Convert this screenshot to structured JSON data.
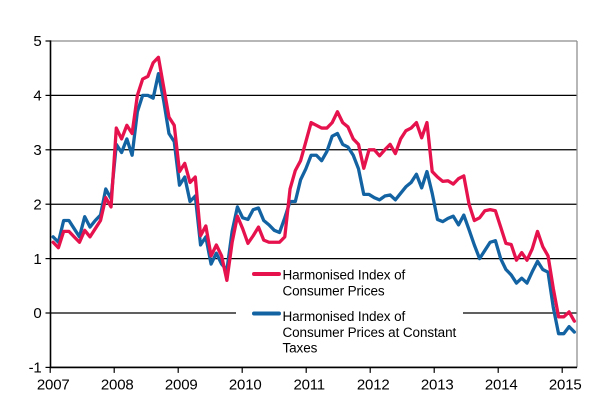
{
  "chart_data": {
    "type": "line",
    "x_tick_labels": [
      "2007",
      "2008",
      "2009",
      "2010",
      "2011",
      "2012",
      "2013",
      "2014",
      "2015"
    ],
    "y_tick_labels": [
      "5",
      "4",
      "3",
      "2",
      "1",
      "0",
      "-1"
    ],
    "y_ticks": [
      5,
      4,
      3,
      2,
      1,
      0,
      -1
    ],
    "ylim": [
      -1,
      5
    ],
    "x_range": [
      "2007M01",
      "2015M04"
    ],
    "points_per_year": 12,
    "grid": "horizontal",
    "legend_position": "inside-bottom",
    "series": [
      {
        "name": "Harmonised Index of Consumer Prices",
        "color": "#e6124d",
        "values": [
          1.3,
          1.2,
          1.5,
          1.5,
          1.4,
          1.3,
          1.52,
          1.4,
          1.55,
          1.7,
          2.12,
          1.95,
          3.4,
          3.2,
          3.45,
          3.3,
          4.0,
          4.3,
          4.35,
          4.6,
          4.7,
          4.15,
          3.6,
          3.45,
          2.6,
          2.75,
          2.4,
          2.5,
          1.42,
          1.6,
          1.05,
          1.25,
          1.05,
          0.6,
          1.3,
          1.78,
          1.55,
          1.28,
          1.42,
          1.58,
          1.34,
          1.3,
          1.3,
          1.3,
          1.4,
          2.28,
          2.62,
          2.8,
          3.15,
          3.5,
          3.45,
          3.4,
          3.4,
          3.5,
          3.7,
          3.5,
          3.42,
          3.2,
          3.1,
          2.66,
          3.0,
          3.0,
          2.89,
          3.0,
          3.1,
          2.93,
          3.2,
          3.35,
          3.4,
          3.5,
          3.22,
          3.5,
          2.6,
          2.5,
          2.42,
          2.43,
          2.37,
          2.47,
          2.52,
          2.0,
          1.7,
          1.75,
          1.88,
          1.9,
          1.88,
          1.58,
          1.28,
          1.26,
          0.97,
          1.11,
          0.97,
          1.18,
          1.5,
          1.22,
          1.05,
          0.45,
          -0.07,
          -0.07,
          0.02,
          -0.15
        ]
      },
      {
        "name": "Harmonised Index of Consumer Prices at Constant Taxes",
        "color": "#1363a3",
        "values": [
          1.4,
          1.3,
          1.7,
          1.7,
          1.55,
          1.4,
          1.77,
          1.58,
          1.7,
          1.8,
          2.28,
          2.1,
          3.1,
          2.95,
          3.2,
          2.9,
          3.7,
          4.0,
          4.0,
          3.95,
          4.4,
          3.9,
          3.3,
          3.15,
          2.35,
          2.5,
          2.05,
          2.15,
          1.25,
          1.4,
          0.9,
          1.1,
          0.9,
          0.79,
          1.5,
          1.95,
          1.75,
          1.72,
          1.9,
          1.93,
          1.7,
          1.62,
          1.52,
          1.48,
          1.75,
          2.05,
          2.05,
          2.45,
          2.65,
          2.9,
          2.9,
          2.8,
          2.97,
          3.25,
          3.3,
          3.1,
          3.05,
          2.9,
          2.65,
          2.18,
          2.18,
          2.12,
          2.08,
          2.15,
          2.17,
          2.08,
          2.2,
          2.32,
          2.4,
          2.55,
          2.3,
          2.6,
          2.2,
          1.72,
          1.68,
          1.74,
          1.78,
          1.62,
          1.8,
          1.53,
          1.25,
          1.0,
          1.15,
          1.3,
          1.33,
          1.0,
          0.8,
          0.7,
          0.55,
          0.64,
          0.55,
          0.76,
          0.95,
          0.8,
          0.75,
          0.1,
          -0.38,
          -0.38,
          -0.25,
          -0.35
        ]
      }
    ],
    "legend": [
      {
        "series": 0,
        "label_lines": [
          "Harmonised Index of",
          "Consumer Prices"
        ]
      },
      {
        "series": 1,
        "label_lines": [
          "Harmonised Index of",
          "Consumer Prices at Constant",
          "Taxes"
        ]
      }
    ]
  }
}
